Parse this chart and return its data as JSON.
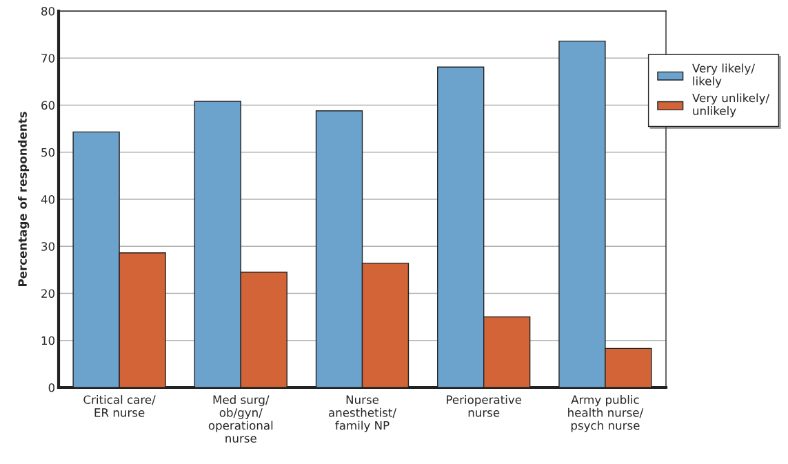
{
  "chart_data": {
    "type": "bar",
    "ylabel": "Percentage of respondents",
    "categories": [
      "Critical care/\nER nurse",
      "Med surg/\nob/gyn/\noperational\nnurse",
      "Nurse\nanesthetist/\nfamily NP",
      "Perioperative\nnurse",
      "Army public\nhealth nurse/\npsych nurse"
    ],
    "series": [
      {
        "name": "Very likely/\nlikely",
        "color": "#6ca3cc",
        "values": [
          54.3,
          60.8,
          58.8,
          68.1,
          73.6
        ]
      },
      {
        "name": "Very unlikely/\nunlikely",
        "color": "#d36437",
        "values": [
          28.6,
          24.5,
          26.4,
          15.0,
          8.3
        ]
      }
    ],
    "ylim": [
      0,
      80
    ],
    "yticks": [
      0,
      10,
      20,
      30,
      40,
      50,
      60,
      70,
      80
    ],
    "grid": "y",
    "legend": "top right"
  }
}
